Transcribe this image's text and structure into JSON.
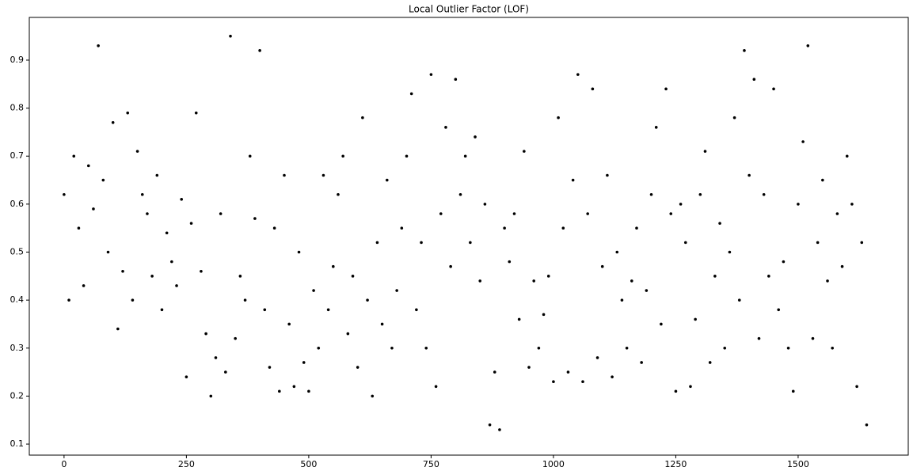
{
  "chart_data": {
    "type": "scatter",
    "title": "Local Outlier Factor (LOF)",
    "color": "#000000",
    "x": [
      0,
      10,
      20,
      30,
      40,
      50,
      60,
      70,
      80,
      90,
      100,
      110,
      120,
      130,
      140,
      150,
      160,
      170,
      180,
      190,
      200,
      210,
      220,
      230,
      240,
      250,
      260,
      270,
      280,
      290,
      300,
      310,
      320,
      330,
      340,
      350,
      360,
      370,
      380,
      390,
      400,
      410,
      420,
      430,
      440,
      450,
      460,
      470,
      480,
      490,
      500,
      510,
      520,
      530,
      540,
      550,
      560,
      570,
      580,
      590,
      600,
      610,
      620,
      630,
      640,
      650,
      660,
      670,
      680,
      690,
      700,
      710,
      720,
      730,
      740,
      750,
      760,
      770,
      780,
      790,
      800,
      810,
      820,
      830,
      840,
      850,
      860,
      870,
      880,
      890,
      900,
      910,
      920,
      930,
      940,
      950,
      960,
      970,
      980,
      990,
      1000,
      1010,
      1020,
      1030,
      1040,
      1050,
      1060,
      1070,
      1080,
      1090,
      1100,
      1110,
      1120,
      1130,
      1140,
      1150,
      1160,
      1170,
      1180,
      1190,
      1200,
      1210,
      1220,
      1230,
      1240,
      1250,
      1260,
      1270,
      1280,
      1290,
      1300,
      1310,
      1320,
      1330,
      1340,
      1350,
      1360,
      1370,
      1380,
      1390,
      1400,
      1410,
      1420,
      1430,
      1440,
      1450,
      1460,
      1470,
      1480,
      1490,
      1500,
      1510,
      1520,
      1530,
      1540,
      1550,
      1560,
      1570,
      1580,
      1590,
      1600,
      1610,
      1620,
      1630,
      1640
    ],
    "values": [
      0.62,
      0.4,
      0.7,
      0.55,
      0.43,
      0.68,
      0.59,
      0.93,
      0.65,
      0.5,
      0.77,
      0.34,
      0.46,
      0.79,
      0.4,
      0.71,
      0.62,
      0.58,
      0.45,
      0.66,
      0.38,
      0.54,
      0.48,
      0.43,
      0.61,
      0.24,
      0.56,
      0.79,
      0.46,
      0.33,
      0.2,
      0.28,
      0.58,
      0.25,
      0.95,
      0.32,
      0.45,
      0.4,
      0.7,
      0.57,
      0.92,
      0.38,
      0.26,
      0.55,
      0.21,
      0.66,
      0.35,
      0.22,
      0.5,
      0.27,
      0.21,
      0.42,
      0.3,
      0.66,
      0.38,
      0.47,
      0.62,
      0.7,
      0.33,
      0.45,
      0.26,
      0.78,
      0.4,
      0.2,
      0.52,
      0.35,
      0.65,
      0.3,
      0.42,
      0.55,
      0.7,
      0.83,
      0.38,
      0.52,
      0.3,
      0.87,
      0.22,
      0.58,
      0.76,
      0.47,
      0.86,
      0.62,
      0.7,
      0.52,
      0.74,
      0.44,
      0.6,
      0.14,
      0.25,
      0.13,
      0.55,
      0.48,
      0.58,
      0.36,
      0.71,
      0.26,
      0.44,
      0.3,
      0.37,
      0.45,
      0.23,
      0.78,
      0.55,
      0.25,
      0.65,
      0.87,
      0.23,
      0.58,
      0.84,
      0.28,
      0.47,
      0.66,
      0.24,
      0.5,
      0.4,
      0.3,
      0.44,
      0.55,
      0.27,
      0.42,
      0.62,
      0.76,
      0.35,
      0.84,
      0.58,
      0.21,
      0.6,
      0.52,
      0.22,
      0.36,
      0.62,
      0.71,
      0.27,
      0.45,
      0.56,
      0.3,
      0.5,
      0.78,
      0.4,
      0.92,
      0.66,
      0.86,
      0.32,
      0.62,
      0.45,
      0.84,
      0.38,
      0.48,
      0.3,
      0.21,
      0.6,
      0.73,
      0.93,
      0.32,
      0.52,
      0.65,
      0.44,
      0.3,
      0.58,
      0.47,
      0.7,
      0.6,
      0.22,
      0.52,
      0.14
    ],
    "xlim": [
      -71,
      1725
    ],
    "ylim": [
      0.077,
      0.989
    ],
    "xticks": [
      0,
      250,
      500,
      750,
      1000,
      1250,
      1500
    ],
    "yticks": [
      0.1,
      0.2,
      0.3,
      0.4,
      0.5,
      0.6,
      0.7,
      0.8,
      0.9
    ]
  }
}
